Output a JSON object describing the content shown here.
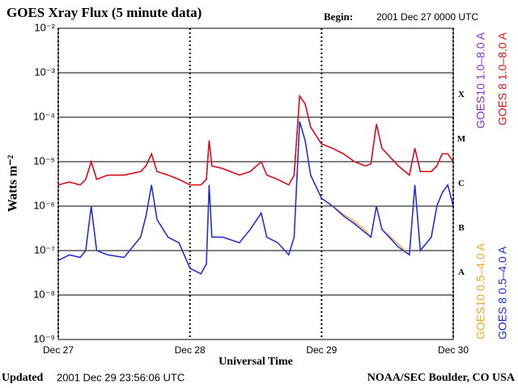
{
  "chart_data": {
    "type": "line",
    "title": "GOES Xray Flux (5 minute data)",
    "begin_label": "Begin:",
    "begin_value": "2001 Dec 27 0000 UTC",
    "updated_label": "Updated",
    "updated_value": "2001 Dec 29 23:56:06 UTC",
    "credit": "NOAA/SEC Boulder, CO USA",
    "xlabel": "Universal Time",
    "ylabel": "Watts m⁻²",
    "log_y": true,
    "grid": true,
    "xlim": [
      0,
      72
    ],
    "xticks": [
      {
        "value": 0,
        "label": "Dec 27"
      },
      {
        "value": 24,
        "label": "Dec 28"
      },
      {
        "value": 48,
        "label": "Dec 29"
      },
      {
        "value": 72,
        "label": "Dec 30"
      }
    ],
    "ylim": [
      1e-09,
      0.01
    ],
    "yticks": [
      {
        "value": 1e-09,
        "label": "10⁻⁹"
      },
      {
        "value": 1e-08,
        "label": "10⁻⁸"
      },
      {
        "value": 1e-07,
        "label": "10⁻⁷"
      },
      {
        "value": 1e-06,
        "label": "10⁻⁶"
      },
      {
        "value": 1e-05,
        "label": "10⁻⁵"
      },
      {
        "value": 0.0001,
        "label": "10⁻⁴"
      },
      {
        "value": 0.001,
        "label": "10⁻³"
      },
      {
        "value": 0.01,
        "label": "10⁻²"
      }
    ],
    "flare_classes": [
      {
        "label": "A",
        "value": 1e-08
      },
      {
        "label": "B",
        "value": 1e-07
      },
      {
        "label": "C",
        "value": 1e-06
      },
      {
        "label": "M",
        "value": 1e-05
      },
      {
        "label": "X",
        "value": 0.0001
      }
    ],
    "x": [
      0,
      2,
      4,
      5,
      6,
      7,
      9,
      12,
      15,
      16,
      17,
      18,
      20,
      22,
      24,
      26,
      27,
      27.5,
      28,
      30,
      33,
      35,
      37,
      38,
      40,
      42,
      43,
      44,
      45,
      46,
      48,
      50,
      52,
      54,
      56,
      57,
      58,
      59,
      62,
      64,
      65,
      66,
      68,
      69,
      70,
      71,
      72
    ],
    "series": [
      {
        "name": "GOES10 1.0–8.0 A",
        "color": "#8a2be2",
        "values": [
          3e-06,
          3.5e-06,
          3e-06,
          4e-06,
          1e-05,
          4e-06,
          5e-06,
          5e-06,
          6e-06,
          8e-06,
          1.5e-05,
          6e-06,
          5e-06,
          4e-06,
          3e-06,
          3e-06,
          4e-06,
          3e-05,
          8e-06,
          7e-06,
          5e-06,
          6e-06,
          1e-05,
          5e-06,
          4e-06,
          3e-06,
          5e-06,
          0.0003,
          0.0002,
          6e-05,
          2.5e-05,
          2e-05,
          1.5e-05,
          1e-05,
          8e-06,
          9e-06,
          7e-05,
          2e-05,
          8e-06,
          5e-06,
          2e-05,
          6e-06,
          6e-06,
          8e-06,
          1.5e-05,
          1.5e-05,
          1e-05
        ]
      },
      {
        "name": "GOES10 0.5–4.0 A",
        "color": "#f5a623",
        "values": [
          6e-08,
          8e-08,
          7e-08,
          1e-07,
          1e-06,
          1e-07,
          8e-08,
          7e-08,
          2e-07,
          6e-07,
          3e-06,
          5e-07,
          2e-07,
          1.5e-07,
          4e-08,
          3e-08,
          5e-08,
          3e-06,
          2e-07,
          2e-07,
          1.5e-07,
          3e-07,
          7e-07,
          2e-07,
          1.5e-07,
          8e-08,
          2e-07,
          8e-05,
          3e-05,
          5e-06,
          1.5e-06,
          1e-06,
          6.5e-07,
          4.5e-07,
          2.8e-07,
          2e-07,
          1e-06,
          3e-07,
          1.4e-07,
          8e-08,
          3e-06,
          1e-07,
          2e-07,
          1e-06,
          2e-06,
          3e-06,
          1e-06
        ]
      },
      {
        "name": "GOES 8 1.0–8.0 A",
        "color": "#e01010",
        "values": [
          3e-06,
          3.5e-06,
          3e-06,
          4e-06,
          1e-05,
          4e-06,
          5e-06,
          5e-06,
          6e-06,
          8e-06,
          1.5e-05,
          6e-06,
          5e-06,
          4e-06,
          3e-06,
          3e-06,
          4e-06,
          3e-05,
          8e-06,
          7e-06,
          5e-06,
          6e-06,
          1e-05,
          5e-06,
          4e-06,
          3e-06,
          5e-06,
          0.0003,
          0.0002,
          6e-05,
          2.5e-05,
          2e-05,
          1.5e-05,
          1e-05,
          8e-06,
          9e-06,
          7e-05,
          2e-05,
          8e-06,
          5e-06,
          2e-05,
          6e-06,
          6e-06,
          8e-06,
          1.5e-05,
          1.5e-05,
          1e-05
        ]
      },
      {
        "name": "GOES 8 0.5–4.0 A",
        "color": "#1a2ee0",
        "values": [
          6e-08,
          8e-08,
          7e-08,
          1e-07,
          1e-06,
          1e-07,
          8e-08,
          7e-08,
          2e-07,
          6e-07,
          3e-06,
          5e-07,
          2e-07,
          1.5e-07,
          4e-08,
          3e-08,
          5e-08,
          3e-06,
          2e-07,
          2e-07,
          1.5e-07,
          3e-07,
          7e-07,
          2e-07,
          1.5e-07,
          8e-08,
          2e-07,
          8e-05,
          3e-05,
          5e-06,
          1.5e-06,
          1e-06,
          6e-07,
          4e-07,
          2.5e-07,
          2e-07,
          1e-06,
          3e-07,
          1.2e-07,
          8e-08,
          3e-06,
          1e-07,
          2e-07,
          1e-06,
          2e-06,
          3e-06,
          1e-06
        ]
      }
    ]
  }
}
